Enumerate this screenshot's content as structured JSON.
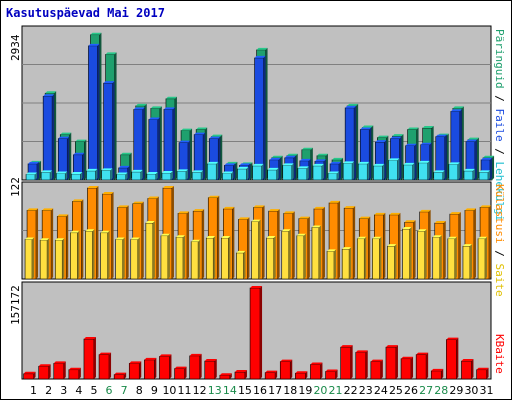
{
  "title": "Kasutuspäevad Mai 2017",
  "colors": {
    "hits": "#1fa06e",
    "files": "#1a4be0",
    "pages": "#40e0f0",
    "visits": "#ff8c00",
    "sites": "#ffe040",
    "kbytes": "#ff0000",
    "weekend_day_label": "#1a8a4a",
    "panel_bg": "#c0c0c0"
  },
  "legend": {
    "hits": "Päringuid",
    "sep1": " / ",
    "files": "Faile",
    "sep2": " / ",
    "pages": "Lehekülgi",
    "visits": "Külastusi",
    "sep3": " / ",
    "sites": "Saite",
    "kbytes": "KBaite"
  },
  "chart_data": [
    {
      "type": "bar",
      "ylabel": "2934",
      "ylim": [
        0,
        2934
      ],
      "categories": [
        "1",
        "2",
        "3",
        "4",
        "5",
        "6",
        "7",
        "8",
        "9",
        "10",
        "11",
        "12",
        "13",
        "14",
        "15",
        "16",
        "17",
        "18",
        "19",
        "20",
        "21",
        "22",
        "23",
        "24",
        "25",
        "26",
        "27",
        "28",
        "29",
        "30",
        "31"
      ],
      "weekend_days": [
        "6",
        "7",
        "13",
        "14",
        "20",
        "21",
        "27",
        "28"
      ],
      "series": [
        {
          "name": "Päringuid",
          "color": "#1fa06e",
          "values": [
            340,
            1720,
            900,
            760,
            2880,
            2490,
            500,
            1470,
            1420,
            1610,
            980,
            1000,
            860,
            320,
            310,
            2580,
            440,
            480,
            600,
            480,
            400,
            1470,
            1040,
            840,
            870,
            1000,
            1030,
            880,
            1420,
            800,
            440
          ]
        },
        {
          "name": "Faile",
          "color": "#1a4be0",
          "values": [
            320,
            1660,
            820,
            500,
            2660,
            1920,
            240,
            1400,
            1200,
            1400,
            740,
            900,
            820,
            290,
            290,
            2420,
            400,
            440,
            380,
            370,
            320,
            1430,
            1000,
            750,
            820,
            680,
            700,
            860,
            1360,
            760,
            400
          ]
        },
        {
          "name": "Lehekülgi",
          "color": "#40e0f0",
          "values": [
            110,
            150,
            130,
            120,
            180,
            190,
            110,
            160,
            120,
            140,
            170,
            150,
            320,
            130,
            220,
            280,
            200,
            290,
            230,
            280,
            130,
            330,
            320,
            280,
            390,
            300,
            340,
            150,
            310,
            180,
            150
          ]
        }
      ]
    },
    {
      "type": "bar",
      "ylabel": "122",
      "ylim": [
        0,
        122
      ],
      "categories": [
        "1",
        "2",
        "3",
        "4",
        "5",
        "6",
        "7",
        "8",
        "9",
        "10",
        "11",
        "12",
        "13",
        "14",
        "15",
        "16",
        "17",
        "18",
        "19",
        "20",
        "21",
        "22",
        "23",
        "24",
        "25",
        "26",
        "27",
        "28",
        "29",
        "30",
        "31"
      ],
      "series": [
        {
          "name": "Külastusi",
          "color": "#ff8c00",
          "values": [
            92,
            92,
            84,
            104,
            122,
            114,
            96,
            101,
            108,
            122,
            88,
            91,
            109,
            94,
            80,
            96,
            91,
            88,
            81,
            94,
            102,
            95,
            81,
            86,
            86,
            76,
            90,
            75,
            87,
            92,
            96
          ]
        },
        {
          "name": "Saite",
          "color": "#ffe040",
          "values": [
            53,
            52,
            52,
            62,
            64,
            62,
            53,
            53,
            75,
            58,
            56,
            50,
            55,
            55,
            35,
            77,
            55,
            64,
            58,
            69,
            37,
            40,
            54,
            54,
            44,
            67,
            64,
            56,
            54,
            44,
            54
          ]
        }
      ]
    },
    {
      "type": "bar",
      "ylabel": "157172",
      "ylim": [
        0,
        157172
      ],
      "categories": [
        "1",
        "2",
        "3",
        "4",
        "5",
        "6",
        "7",
        "8",
        "9",
        "10",
        "11",
        "12",
        "13",
        "14",
        "15",
        "16",
        "17",
        "18",
        "19",
        "20",
        "21",
        "22",
        "23",
        "24",
        "25",
        "26",
        "27",
        "28",
        "29",
        "30",
        "31"
      ],
      "series": [
        {
          "name": "KBaite",
          "color": "#ff0000",
          "values": [
            9000,
            22000,
            27000,
            16000,
            69000,
            42000,
            7500,
            27000,
            33000,
            39000,
            18000,
            40000,
            31000,
            6500,
            12000,
            157172,
            11000,
            30000,
            10000,
            25000,
            13000,
            55000,
            46000,
            30000,
            55000,
            35000,
            42000,
            14000,
            68000,
            31000,
            16000
          ]
        }
      ]
    }
  ]
}
